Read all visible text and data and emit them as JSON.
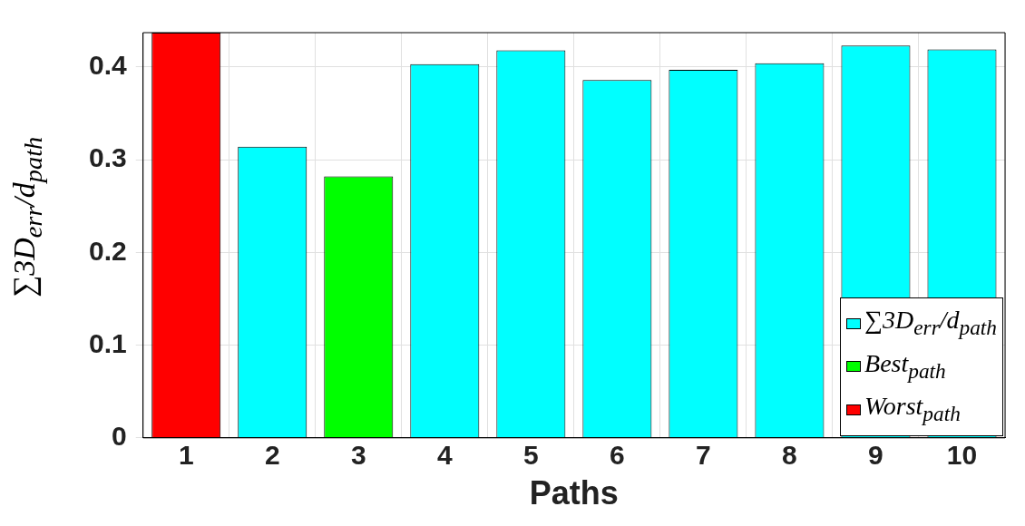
{
  "chart_data": {
    "type": "bar",
    "xlabel": "Paths",
    "ylabel": "∑3D$_{err}$/d$_{path}$",
    "categories": [
      "1",
      "2",
      "3",
      "4",
      "5",
      "6",
      "7",
      "8",
      "9",
      "10"
    ],
    "stacked": true,
    "series": [
      {
        "name": "∑3D$_{err}$/d$_{path}$",
        "color": "#00ffff",
        "values": [
          null,
          0.314,
          null,
          0.403,
          0.418,
          0.386,
          0.397,
          0.404,
          0.423,
          0.419
        ]
      },
      {
        "name": "Best$_{path}$",
        "color": "#00ff00",
        "values": [
          null,
          null,
          0.282,
          null,
          null,
          null,
          null,
          null,
          null,
          null
        ]
      },
      {
        "name": "Worst$_{path}$",
        "color": "#ff0000",
        "values": [
          0.437,
          null,
          null,
          null,
          null,
          null,
          null,
          null,
          null,
          null
        ]
      }
    ],
    "ylim": [
      0,
      0.437
    ],
    "yticks": [
      0,
      0.1,
      0.2,
      0.3,
      0.4
    ],
    "grid": true,
    "legend": "bottom right"
  }
}
